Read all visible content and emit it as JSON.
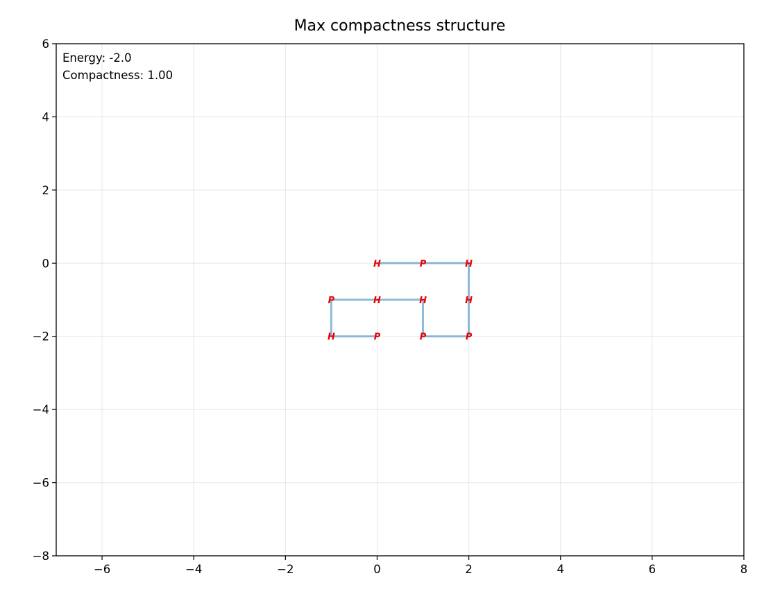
{
  "chart_data": {
    "type": "line",
    "title": "Max compactness structure",
    "xlabel": "",
    "ylabel": "",
    "xlim": [
      -7,
      8
    ],
    "ylim": [
      -8,
      6
    ],
    "x_ticks": [
      -6,
      -4,
      -2,
      0,
      2,
      4,
      6,
      8
    ],
    "y_ticks": [
      -8,
      -6,
      -4,
      -2,
      0,
      2,
      4,
      6
    ],
    "grid": true,
    "annotations": [
      "Energy: -2.0",
      "Compactness: 1.00"
    ],
    "series": [
      {
        "color": "#1f77b4",
        "points": [
          {
            "x": 0,
            "y": 0,
            "label": "H"
          },
          {
            "x": 1,
            "y": 0,
            "label": "P"
          },
          {
            "x": 2,
            "y": 0,
            "label": "H"
          },
          {
            "x": 2,
            "y": -1,
            "label": "H"
          },
          {
            "x": 2,
            "y": -2,
            "label": "P"
          },
          {
            "x": 1,
            "y": -2,
            "label": "P"
          },
          {
            "x": 1,
            "y": -1,
            "label": "H"
          },
          {
            "x": 0,
            "y": -1,
            "label": "H"
          },
          {
            "x": -1,
            "y": -1,
            "label": "P"
          },
          {
            "x": -1,
            "y": -2,
            "label": "H"
          },
          {
            "x": 0,
            "y": -2,
            "label": "P"
          }
        ]
      }
    ],
    "label_color": "#ee0000"
  }
}
